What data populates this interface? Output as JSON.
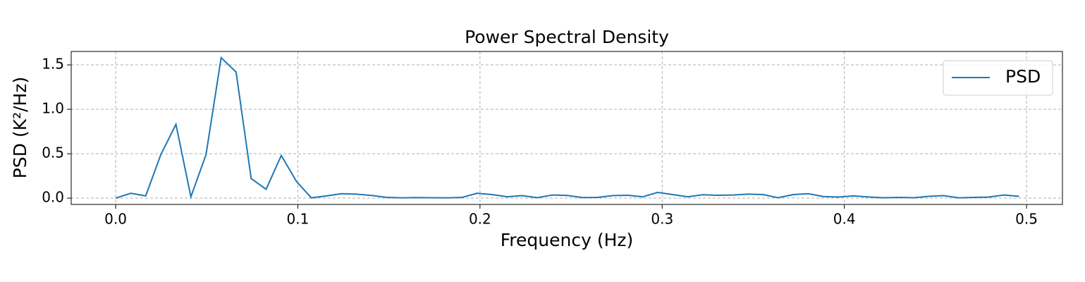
{
  "chart_data": {
    "type": "line",
    "title": "Power Spectral Density",
    "x_label": "Frequency (Hz)",
    "y_label": "PSD (K²/Hz)",
    "x": [
      0,
      0.0083,
      0.0165,
      0.0248,
      0.0331,
      0.0413,
      0.0496,
      0.0579,
      0.0661,
      0.0744,
      0.0826,
      0.0909,
      0.0992,
      0.1074,
      0.1157,
      0.124,
      0.1322,
      0.1405,
      0.1488,
      0.157,
      0.1653,
      0.1736,
      0.1818,
      0.1901,
      0.1983,
      0.2066,
      0.2149,
      0.2231,
      0.2314,
      0.2397,
      0.2479,
      0.2562,
      0.2645,
      0.2727,
      0.281,
      0.2893,
      0.2975,
      0.3058,
      0.314,
      0.3223,
      0.3306,
      0.3388,
      0.3471,
      0.3554,
      0.3636,
      0.3719,
      0.3802,
      0.3884,
      0.3967,
      0.405,
      0.4132,
      0.4215,
      0.4298,
      0.438,
      0.4463,
      0.4545,
      0.4628,
      0.4711,
      0.4793,
      0.4876,
      0.4959
    ],
    "series": [
      {
        "name": "PSD",
        "color": "#1f77b4",
        "values": [
          0.0,
          0.055,
          0.025,
          0.49,
          0.83,
          0.015,
          0.49,
          1.58,
          1.42,
          0.22,
          0.1,
          0.48,
          0.19,
          0.003,
          0.025,
          0.05,
          0.045,
          0.03,
          0.008,
          0.003,
          0.006,
          0.004,
          0.003,
          0.008,
          0.055,
          0.04,
          0.015,
          0.028,
          0.005,
          0.035,
          0.03,
          0.006,
          0.008,
          0.028,
          0.032,
          0.015,
          0.065,
          0.04,
          0.015,
          0.038,
          0.032,
          0.035,
          0.045,
          0.04,
          0.005,
          0.04,
          0.05,
          0.018,
          0.012,
          0.025,
          0.013,
          0.004,
          0.008,
          0.004,
          0.02,
          0.028,
          0.003,
          0.008,
          0.012,
          0.035,
          0.02
        ]
      }
    ],
    "xlim": [
      -0.0244,
      0.5197
    ],
    "ylim": [
      -0.071,
      1.651
    ],
    "xticks": [
      {
        "value": 0,
        "label": "0.0"
      },
      0.1,
      0.2,
      0.3,
      0.4,
      0.5
    ],
    "yticks": [
      {
        "value": 0,
        "label": "0.0"
      },
      0.5,
      {
        "value": 1,
        "label": "1.0"
      },
      1.5
    ],
    "grid": true,
    "legend": "upper right"
  }
}
